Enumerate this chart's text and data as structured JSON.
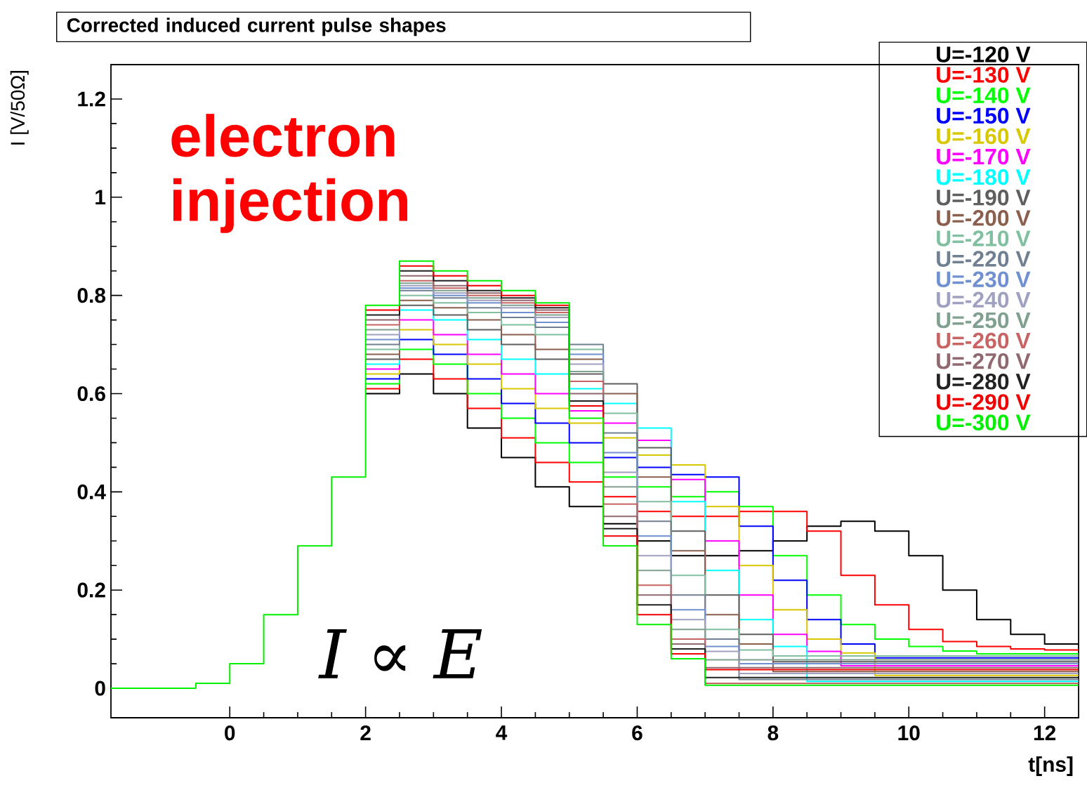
{
  "chart_data": {
    "type": "step",
    "title": "Corrected induced current pulse shapes",
    "xlabel": "t[ns]",
    "ylabel": "I [V/50Ω]",
    "annotations": [
      "electron injection",
      "I ∝ E"
    ],
    "x": [
      -1.75,
      -1,
      -0.5,
      0,
      0.5,
      1,
      1.5,
      2,
      2.5,
      3,
      3.5,
      4,
      4.5,
      5,
      5.5,
      6,
      6.5,
      7,
      7.5,
      8,
      8.5,
      9,
      9.5,
      10,
      10.5,
      11,
      11.5,
      12,
      12.5
    ],
    "xlim": [
      -1.75,
      12.5
    ],
    "ylim": [
      -0.06,
      1.27
    ],
    "xticks": [
      0,
      2,
      4,
      6,
      8,
      10,
      12
    ],
    "yticks": [
      0,
      0.2,
      0.4,
      0.6,
      0.8,
      1,
      1.2
    ],
    "legend": "top right",
    "series": [
      {
        "name": "U=-120 V",
        "color": "#000000",
        "values": [
          null,
          null,
          null,
          null,
          null,
          null,
          null,
          0.6,
          0.64,
          0.6,
          0.53,
          0.47,
          0.41,
          0.37,
          0.335,
          0.3,
          0.27,
          0.27,
          0.28,
          0.3,
          0.33,
          0.34,
          0.32,
          0.27,
          0.2,
          0.14,
          0.11,
          0.09,
          0.082
        ]
      },
      {
        "name": "U=-130 V",
        "color": "#ff0000",
        "values": [
          null,
          null,
          null,
          null,
          null,
          null,
          null,
          0.61,
          0.67,
          0.63,
          0.57,
          0.51,
          0.46,
          0.42,
          0.39,
          0.36,
          0.35,
          0.35,
          0.36,
          0.36,
          0.32,
          0.23,
          0.17,
          0.12,
          0.095,
          0.085,
          0.08,
          0.078,
          0.076
        ]
      },
      {
        "name": "U=-140 V",
        "color": "#00ff00",
        "values": [
          null,
          null,
          null,
          null,
          null,
          null,
          null,
          0.62,
          0.69,
          0.66,
          0.6,
          0.55,
          0.5,
          0.46,
          0.43,
          0.41,
          0.39,
          0.4,
          0.37,
          0.27,
          0.19,
          0.13,
          0.1,
          0.085,
          0.076,
          0.07,
          0.07,
          0.07,
          0.07
        ]
      },
      {
        "name": "U=-150 V",
        "color": "#0000ff",
        "values": [
          null,
          null,
          null,
          null,
          null,
          null,
          null,
          0.63,
          0.71,
          0.68,
          0.63,
          0.58,
          0.54,
          0.5,
          0.47,
          0.45,
          0.435,
          0.43,
          0.33,
          0.22,
          0.14,
          0.09,
          0.062,
          0.062,
          0.062,
          0.062,
          0.062,
          0.062,
          0.062
        ]
      },
      {
        "name": "U=-160 V",
        "color": "#d8c800",
        "values": [
          null,
          null,
          null,
          null,
          null,
          null,
          null,
          0.64,
          0.73,
          0.7,
          0.66,
          0.61,
          0.57,
          0.54,
          0.51,
          0.475,
          0.455,
          0.37,
          0.25,
          0.16,
          0.1,
          0.072,
          0.026,
          0.026,
          0.026,
          0.026,
          0.026,
          0.026,
          0.026
        ]
      },
      {
        "name": "U=-170 V",
        "color": "#ff00ff",
        "values": [
          null,
          null,
          null,
          null,
          null,
          null,
          null,
          0.65,
          0.75,
          0.72,
          0.68,
          0.64,
          0.6,
          0.565,
          0.54,
          0.505,
          0.425,
          0.3,
          0.19,
          0.11,
          0.075,
          0.046,
          0.046,
          0.046,
          0.046,
          0.046,
          0.046,
          0.046,
          0.046
        ]
      },
      {
        "name": "U=-180 V",
        "color": "#00ffff",
        "values": [
          null,
          null,
          null,
          null,
          null,
          null,
          null,
          0.66,
          0.77,
          0.75,
          0.71,
          0.67,
          0.64,
          0.61,
          0.58,
          0.53,
          0.38,
          0.24,
          0.14,
          0.085,
          0.014,
          0.014,
          0.014,
          0.014,
          0.014,
          0.014,
          0.014,
          0.014,
          0.014
        ]
      },
      {
        "name": "U=-190 V",
        "color": "#5f5f5f",
        "values": [
          null,
          null,
          null,
          null,
          null,
          null,
          null,
          0.67,
          0.78,
          0.76,
          0.73,
          0.7,
          0.67,
          0.64,
          0.62,
          0.49,
          0.32,
          0.19,
          0.11,
          0.054,
          0.054,
          0.054,
          0.054,
          0.054,
          0.054,
          0.054,
          0.054,
          0.054,
          0.054
        ]
      },
      {
        "name": "U=-200 V",
        "color": "#8b5f4d",
        "values": [
          null,
          null,
          null,
          null,
          null,
          null,
          null,
          0.68,
          0.79,
          0.775,
          0.75,
          0.72,
          0.69,
          0.67,
          0.6,
          0.43,
          0.28,
          0.15,
          0.09,
          0.034,
          0.034,
          0.034,
          0.034,
          0.034,
          0.034,
          0.034,
          0.034,
          0.034,
          0.034
        ]
      },
      {
        "name": "U=-210 V",
        "color": "#80c0a0",
        "values": [
          null,
          null,
          null,
          null,
          null,
          null,
          null,
          0.69,
          0.8,
          0.785,
          0.765,
          0.74,
          0.72,
          0.69,
          0.56,
          0.38,
          0.23,
          0.12,
          0.078,
          0.066,
          0.066,
          0.066,
          0.066,
          0.066,
          0.066,
          0.066,
          0.066,
          0.066,
          0.066
        ]
      },
      {
        "name": "U=-220 V",
        "color": "#708090",
        "values": [
          null,
          null,
          null,
          null,
          null,
          null,
          null,
          0.7,
          0.81,
          0.795,
          0.775,
          0.755,
          0.735,
          0.7,
          0.52,
          0.34,
          0.19,
          0.1,
          0.018,
          0.018,
          0.018,
          0.018,
          0.018,
          0.018,
          0.018,
          0.018,
          0.018,
          0.018,
          0.018
        ]
      },
      {
        "name": "U=-230 V",
        "color": "#7090d0",
        "values": [
          null,
          null,
          null,
          null,
          null,
          null,
          null,
          0.71,
          0.815,
          0.8,
          0.785,
          0.765,
          0.745,
          0.68,
          0.48,
          0.31,
          0.16,
          0.085,
          0.05,
          0.05,
          0.05,
          0.05,
          0.05,
          0.05,
          0.05,
          0.05,
          0.05,
          0.05,
          0.05
        ]
      },
      {
        "name": "U=-240 V",
        "color": "#a0a0c0",
        "values": [
          null,
          null,
          null,
          null,
          null,
          null,
          null,
          0.72,
          0.82,
          0.805,
          0.79,
          0.775,
          0.755,
          0.66,
          0.44,
          0.27,
          0.14,
          0.075,
          0.03,
          0.03,
          0.03,
          0.03,
          0.03,
          0.03,
          0.03,
          0.03,
          0.03,
          0.03,
          0.03
        ]
      },
      {
        "name": "U=-250 V",
        "color": "#80a090",
        "values": [
          null,
          null,
          null,
          null,
          null,
          null,
          null,
          0.73,
          0.825,
          0.81,
          0.795,
          0.78,
          0.76,
          0.645,
          0.41,
          0.24,
          0.12,
          0.058,
          0.058,
          0.058,
          0.058,
          0.058,
          0.058,
          0.058,
          0.058,
          0.058,
          0.058,
          0.058,
          0.058
        ]
      },
      {
        "name": "U=-260 V",
        "color": "#c86464",
        "values": [
          null,
          null,
          null,
          null,
          null,
          null,
          null,
          0.74,
          0.83,
          0.815,
          0.8,
          0.785,
          0.765,
          0.625,
          0.375,
          0.21,
          0.1,
          0.01,
          0.01,
          0.01,
          0.01,
          0.01,
          0.01,
          0.01,
          0.01,
          0.01,
          0.01,
          0.01,
          0.01
        ]
      },
      {
        "name": "U=-270 V",
        "color": "#906870",
        "values": [
          null,
          null,
          null,
          null,
          null,
          null,
          null,
          0.75,
          0.84,
          0.82,
          0.805,
          0.79,
          0.77,
          0.6,
          0.35,
          0.19,
          0.09,
          0.042,
          0.042,
          0.042,
          0.042,
          0.042,
          0.042,
          0.042,
          0.042,
          0.042,
          0.042,
          0.042,
          0.042
        ]
      },
      {
        "name": "U=-280 V",
        "color": "#222222",
        "values": [
          null,
          null,
          null,
          null,
          null,
          null,
          null,
          0.76,
          0.85,
          0.83,
          0.81,
          0.795,
          0.775,
          0.585,
          0.325,
          0.17,
          0.08,
          0.022,
          0.022,
          0.022,
          0.022,
          0.022,
          0.022,
          0.022,
          0.022,
          0.022,
          0.022,
          0.022,
          0.022
        ]
      },
      {
        "name": "U=-290 V",
        "color": "#f00000",
        "values": [
          null,
          null,
          null,
          null,
          null,
          null,
          null,
          0.77,
          0.86,
          0.84,
          0.82,
          0.8,
          0.78,
          0.575,
          0.31,
          0.15,
          0.07,
          0.038,
          0.038,
          0.038,
          0.038,
          0.038,
          0.038,
          0.038,
          0.038,
          0.038,
          0.038,
          0.038,
          0.038
        ]
      },
      {
        "name": "U=-300 V",
        "color": "#00f000",
        "values": [
          0,
          0,
          0.01,
          0.05,
          0.15,
          0.29,
          0.43,
          0.78,
          0.87,
          0.85,
          0.83,
          0.81,
          0.785,
          0.55,
          0.29,
          0.13,
          0.06,
          0.006,
          0.006,
          0.006,
          0.006,
          0.006,
          0.006,
          0.006,
          0.006,
          0.006,
          0.006,
          0.006,
          0.006
        ]
      }
    ]
  }
}
